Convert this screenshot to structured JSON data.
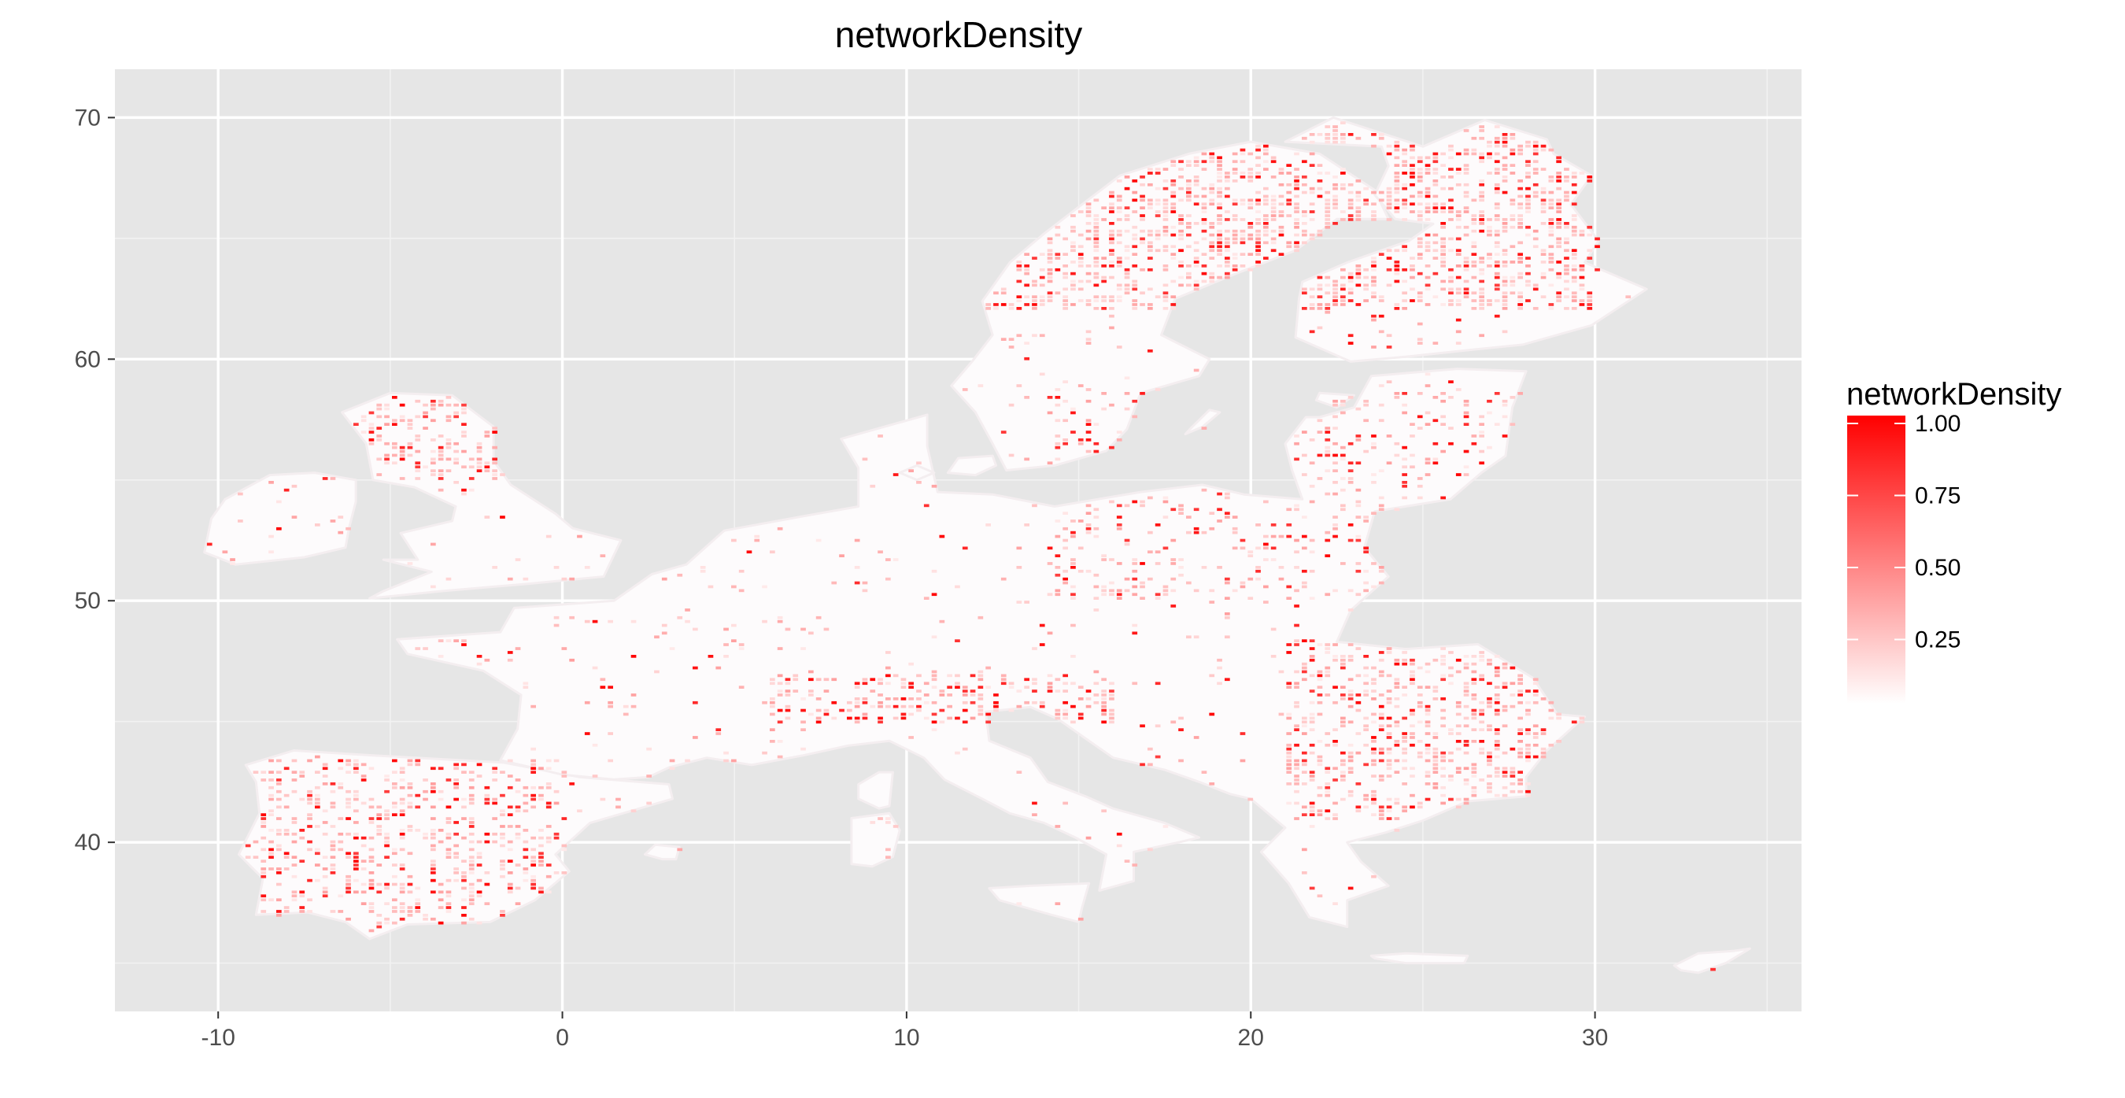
{
  "chart_data": {
    "type": "heatmap",
    "title": "networkDensity",
    "xlabel": "",
    "ylabel": "",
    "xlim": [
      -13,
      36
    ],
    "ylim": [
      33,
      72
    ],
    "x_ticks": [
      -10,
      0,
      10,
      20,
      30
    ],
    "x_tick_labels": [
      "-10",
      "0",
      "10",
      "20",
      "30"
    ],
    "y_ticks": [
      40,
      50,
      60,
      70
    ],
    "y_tick_labels": [
      "40",
      "50",
      "60",
      "70"
    ],
    "grid": true,
    "panel_background": "#e6e6e6",
    "land_color": "#fdfbfc",
    "legend": {
      "title": "networkDensity",
      "position": "right",
      "breaks": [
        1.0,
        0.75,
        0.5,
        0.25
      ],
      "labels": [
        "1.00",
        "0.75",
        "0.50",
        "0.25"
      ],
      "range": [
        0.0,
        1.0
      ],
      "low_color": "#ffffff",
      "high_color": "#ff0000"
    },
    "regions": [
      {
        "name": "Ireland",
        "outline": [
          [
            -10.4,
            52.0
          ],
          [
            -10.2,
            53.4
          ],
          [
            -9.8,
            54.2
          ],
          [
            -8.5,
            55.2
          ],
          [
            -7.2,
            55.3
          ],
          [
            -6.0,
            55.0
          ],
          [
            -6.0,
            54.1
          ],
          [
            -6.2,
            53.0
          ],
          [
            -6.3,
            52.2
          ],
          [
            -7.5,
            51.8
          ],
          [
            -9.5,
            51.5
          ]
        ]
      },
      {
        "name": "Great Britain",
        "outline": [
          [
            -5.6,
            50.1
          ],
          [
            -3.5,
            50.4
          ],
          [
            -1.0,
            50.7
          ],
          [
            1.2,
            51.0
          ],
          [
            1.7,
            52.5
          ],
          [
            0.3,
            53.0
          ],
          [
            -0.2,
            53.6
          ],
          [
            -1.5,
            54.8
          ],
          [
            -2.0,
            55.8
          ],
          [
            -2.0,
            57.2
          ],
          [
            -3.2,
            58.5
          ],
          [
            -5.0,
            58.6
          ],
          [
            -6.4,
            57.8
          ],
          [
            -5.7,
            56.5
          ],
          [
            -5.5,
            55.0
          ],
          [
            -4.3,
            54.7
          ],
          [
            -3.1,
            53.9
          ],
          [
            -3.2,
            53.3
          ],
          [
            -4.7,
            52.8
          ],
          [
            -4.2,
            51.7
          ],
          [
            -5.2,
            51.7
          ],
          [
            -3.8,
            51.2
          ],
          [
            -5.2,
            50.4
          ]
        ]
      },
      {
        "name": "Iberian Peninsula",
        "outline": [
          [
            -9.2,
            43.2
          ],
          [
            -7.8,
            43.8
          ],
          [
            -5.5,
            43.6
          ],
          [
            -3.0,
            43.4
          ],
          [
            -1.7,
            43.3
          ],
          [
            0.5,
            42.7
          ],
          [
            3.1,
            42.4
          ],
          [
            3.2,
            41.8
          ],
          [
            0.8,
            40.8
          ],
          [
            -0.2,
            39.5
          ],
          [
            0.2,
            38.8
          ],
          [
            -0.8,
            37.6
          ],
          [
            -2.1,
            36.7
          ],
          [
            -4.5,
            36.6
          ],
          [
            -5.6,
            36.0
          ],
          [
            -6.3,
            36.7
          ],
          [
            -7.4,
            37.1
          ],
          [
            -8.9,
            37.0
          ],
          [
            -8.7,
            38.5
          ],
          [
            -9.4,
            39.5
          ],
          [
            -8.8,
            41.2
          ],
          [
            -8.9,
            42.5
          ]
        ]
      },
      {
        "name": "Continental Europe",
        "outline": [
          [
            -4.8,
            48.4
          ],
          [
            -1.8,
            48.7
          ],
          [
            -1.4,
            49.7
          ],
          [
            1.5,
            50.0
          ],
          [
            2.6,
            51.1
          ],
          [
            3.6,
            51.5
          ],
          [
            4.7,
            52.9
          ],
          [
            7.0,
            53.5
          ],
          [
            8.6,
            53.9
          ],
          [
            8.6,
            55.5
          ],
          [
            8.1,
            56.7
          ],
          [
            10.6,
            57.7
          ],
          [
            10.6,
            56.4
          ],
          [
            10.9,
            54.5
          ],
          [
            12.5,
            54.4
          ],
          [
            14.3,
            53.9
          ],
          [
            16.8,
            54.5
          ],
          [
            18.6,
            54.8
          ],
          [
            19.8,
            54.4
          ],
          [
            21.5,
            54.2
          ],
          [
            21.2,
            55.4
          ],
          [
            21.0,
            56.5
          ],
          [
            21.6,
            57.6
          ],
          [
            22.0,
            57.6
          ],
          [
            23.0,
            58.0
          ],
          [
            23.5,
            59.3
          ],
          [
            26.0,
            59.6
          ],
          [
            28.0,
            59.5
          ],
          [
            27.6,
            58.0
          ],
          [
            27.4,
            56.0
          ],
          [
            26.7,
            55.3
          ],
          [
            25.8,
            54.2
          ],
          [
            23.6,
            53.7
          ],
          [
            23.3,
            52.2
          ],
          [
            24.0,
            51.0
          ],
          [
            22.9,
            49.6
          ],
          [
            22.5,
            48.3
          ],
          [
            24.5,
            48.0
          ],
          [
            26.6,
            48.2
          ],
          [
            28.2,
            46.8
          ],
          [
            28.9,
            45.3
          ],
          [
            29.7,
            45.2
          ],
          [
            28.6,
            43.8
          ],
          [
            28.0,
            42.7
          ],
          [
            28.0,
            41.9
          ],
          [
            26.3,
            41.7
          ],
          [
            25.0,
            40.9
          ],
          [
            23.9,
            40.4
          ],
          [
            22.8,
            40.0
          ],
          [
            23.2,
            39.2
          ],
          [
            24.0,
            38.2
          ],
          [
            22.8,
            37.6
          ],
          [
            22.8,
            36.5
          ],
          [
            21.7,
            36.9
          ],
          [
            21.1,
            38.3
          ],
          [
            20.3,
            39.6
          ],
          [
            21.0,
            40.6
          ],
          [
            20.0,
            41.8
          ],
          [
            19.4,
            42.0
          ],
          [
            18.5,
            42.5
          ],
          [
            17.5,
            43.0
          ],
          [
            16.0,
            43.5
          ],
          [
            15.1,
            44.4
          ],
          [
            14.4,
            45.1
          ],
          [
            13.6,
            45.6
          ],
          [
            12.3,
            45.4
          ],
          [
            12.4,
            44.2
          ],
          [
            13.6,
            43.5
          ],
          [
            14.1,
            42.5
          ],
          [
            15.2,
            41.9
          ],
          [
            16.0,
            41.4
          ],
          [
            17.5,
            40.8
          ],
          [
            18.5,
            40.2
          ],
          [
            17.9,
            40.0
          ],
          [
            16.6,
            39.6
          ],
          [
            16.6,
            38.4
          ],
          [
            15.6,
            38.0
          ],
          [
            15.8,
            39.5
          ],
          [
            14.9,
            40.2
          ],
          [
            14.0,
            40.8
          ],
          [
            13.0,
            41.2
          ],
          [
            12.2,
            41.8
          ],
          [
            11.1,
            42.6
          ],
          [
            10.5,
            43.5
          ],
          [
            9.5,
            44.2
          ],
          [
            8.3,
            44.0
          ],
          [
            7.0,
            43.6
          ],
          [
            5.5,
            43.2
          ],
          [
            4.2,
            43.5
          ],
          [
            3.1,
            43.1
          ],
          [
            2.5,
            42.7
          ],
          [
            1.5,
            42.6
          ],
          [
            0.0,
            42.8
          ],
          [
            -1.8,
            43.4
          ],
          [
            -1.3,
            44.7
          ],
          [
            -1.2,
            46.1
          ],
          [
            -2.3,
            47.1
          ],
          [
            -4.5,
            47.8
          ]
        ]
      },
      {
        "name": "Sweden",
        "outline": [
          [
            12.5,
            56.5
          ],
          [
            12.0,
            57.8
          ],
          [
            11.3,
            58.9
          ],
          [
            11.9,
            59.9
          ],
          [
            12.5,
            61.0
          ],
          [
            12.2,
            62.4
          ],
          [
            13.0,
            64.0
          ],
          [
            14.0,
            65.2
          ],
          [
            15.0,
            66.3
          ],
          [
            16.2,
            67.6
          ],
          [
            18.2,
            68.5
          ],
          [
            20.0,
            69.0
          ],
          [
            22.0,
            68.5
          ],
          [
            23.6,
            67.0
          ],
          [
            24.0,
            65.8
          ],
          [
            22.5,
            65.8
          ],
          [
            21.3,
            64.5
          ],
          [
            19.5,
            63.5
          ],
          [
            17.8,
            62.5
          ],
          [
            17.4,
            61.0
          ],
          [
            18.8,
            60.0
          ],
          [
            18.5,
            59.3
          ],
          [
            16.8,
            58.6
          ],
          [
            16.4,
            57.1
          ],
          [
            15.8,
            56.2
          ],
          [
            14.3,
            55.6
          ],
          [
            12.9,
            55.4
          ]
        ]
      },
      {
        "name": "Finland",
        "outline": [
          [
            21.3,
            60.9
          ],
          [
            21.4,
            62.5
          ],
          [
            21.5,
            63.2
          ],
          [
            22.8,
            64.0
          ],
          [
            24.6,
            64.9
          ],
          [
            25.3,
            65.6
          ],
          [
            24.2,
            65.8
          ],
          [
            23.6,
            66.8
          ],
          [
            24.0,
            68.0
          ],
          [
            23.8,
            68.8
          ],
          [
            21.0,
            69.0
          ],
          [
            22.4,
            70.0
          ],
          [
            25.0,
            68.8
          ],
          [
            26.8,
            69.9
          ],
          [
            28.6,
            69.1
          ],
          [
            28.8,
            68.5
          ],
          [
            29.9,
            67.6
          ],
          [
            29.3,
            66.4
          ],
          [
            30.1,
            64.9
          ],
          [
            29.7,
            64.0
          ],
          [
            31.5,
            62.9
          ],
          [
            29.9,
            61.4
          ],
          [
            27.9,
            60.6
          ],
          [
            26.5,
            60.4
          ],
          [
            24.5,
            60.1
          ],
          [
            22.9,
            59.9
          ]
        ]
      },
      {
        "name": "Sardinia",
        "outline": [
          [
            8.4,
            41.0
          ],
          [
            9.5,
            41.2
          ],
          [
            9.8,
            40.5
          ],
          [
            9.6,
            39.4
          ],
          [
            9.0,
            39.0
          ],
          [
            8.4,
            39.1
          ],
          [
            8.4,
            40.4
          ]
        ]
      },
      {
        "name": "Corsica",
        "outline": [
          [
            9.2,
            42.9
          ],
          [
            9.6,
            42.9
          ],
          [
            9.5,
            41.5
          ],
          [
            9.2,
            41.4
          ],
          [
            8.6,
            41.8
          ],
          [
            8.6,
            42.4
          ]
        ]
      },
      {
        "name": "Sicily",
        "outline": [
          [
            12.4,
            38.1
          ],
          [
            13.6,
            38.2
          ],
          [
            15.3,
            38.3
          ],
          [
            15.1,
            37.3
          ],
          [
            15.0,
            36.7
          ],
          [
            14.2,
            37.0
          ],
          [
            12.7,
            37.6
          ]
        ]
      },
      {
        "name": "Crete",
        "outline": [
          [
            23.5,
            35.3
          ],
          [
            24.5,
            35.4
          ],
          [
            26.3,
            35.3
          ],
          [
            26.2,
            35.0
          ],
          [
            24.5,
            35.0
          ],
          [
            23.6,
            35.2
          ]
        ]
      },
      {
        "name": "Cyprus",
        "outline": [
          [
            32.3,
            34.9
          ],
          [
            33.0,
            35.4
          ],
          [
            34.0,
            35.5
          ],
          [
            34.5,
            35.6
          ],
          [
            33.8,
            35.0
          ],
          [
            33.0,
            34.6
          ],
          [
            32.5,
            34.7
          ]
        ]
      },
      {
        "name": "Gotland",
        "outline": [
          [
            18.1,
            56.9
          ],
          [
            18.3,
            57.2
          ],
          [
            18.8,
            57.9
          ],
          [
            19.1,
            57.8
          ],
          [
            18.6,
            57.2
          ]
        ]
      },
      {
        "name": "Zealand",
        "outline": [
          [
            11.2,
            55.3
          ],
          [
            11.5,
            55.9
          ],
          [
            12.5,
            56.0
          ],
          [
            12.6,
            55.6
          ],
          [
            12.0,
            55.2
          ]
        ]
      },
      {
        "name": "Funen",
        "outline": [
          [
            9.8,
            55.3
          ],
          [
            10.3,
            55.6
          ],
          [
            10.8,
            55.3
          ],
          [
            10.3,
            55.0
          ]
        ]
      },
      {
        "name": "Estonia islands",
        "outline": [
          [
            21.9,
            58.3
          ],
          [
            22.0,
            58.6
          ],
          [
            23.0,
            58.5
          ],
          [
            22.5,
            58.0
          ]
        ]
      },
      {
        "name": "Balearic Islands",
        "outline": [
          [
            2.4,
            39.5
          ],
          [
            2.7,
            39.9
          ],
          [
            3.4,
            39.8
          ],
          [
            3.3,
            39.3
          ],
          [
            2.9,
            39.3
          ]
        ]
      }
    ]
  }
}
